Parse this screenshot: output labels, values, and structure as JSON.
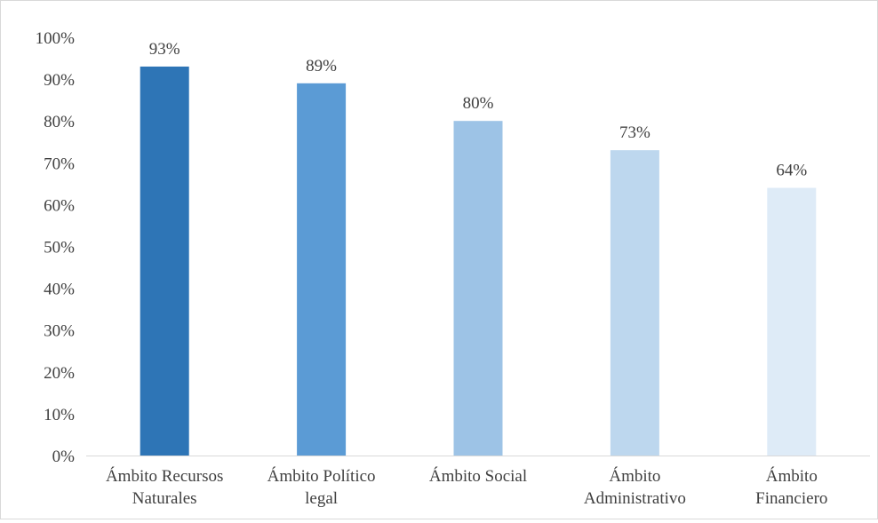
{
  "chart_data": {
    "type": "bar",
    "categories": [
      [
        "Ámbito Recursos",
        "Naturales"
      ],
      [
        "Ámbito Político",
        "legal"
      ],
      [
        "Ámbito Social"
      ],
      [
        "Ámbito",
        "Administrativo"
      ],
      [
        "Ámbito",
        "Financiero"
      ]
    ],
    "values": [
      93,
      89,
      80,
      73,
      64
    ],
    "value_labels": [
      "93%",
      "89%",
      "80%",
      "73%",
      "64%"
    ],
    "bar_colors": [
      "#2E75B6",
      "#5B9BD5",
      "#9DC3E6",
      "#BDD7EE",
      "#DEEBF7"
    ],
    "ylim": [
      0,
      100
    ],
    "yticks": [
      0,
      10,
      20,
      30,
      40,
      50,
      60,
      70,
      80,
      90,
      100
    ],
    "ytick_labels": [
      "0%",
      "10%",
      "20%",
      "30%",
      "40%",
      "50%",
      "60%",
      "70%",
      "80%",
      "90%",
      "100%"
    ],
    "grid": false,
    "title": "",
    "xlabel": "",
    "ylabel": ""
  }
}
